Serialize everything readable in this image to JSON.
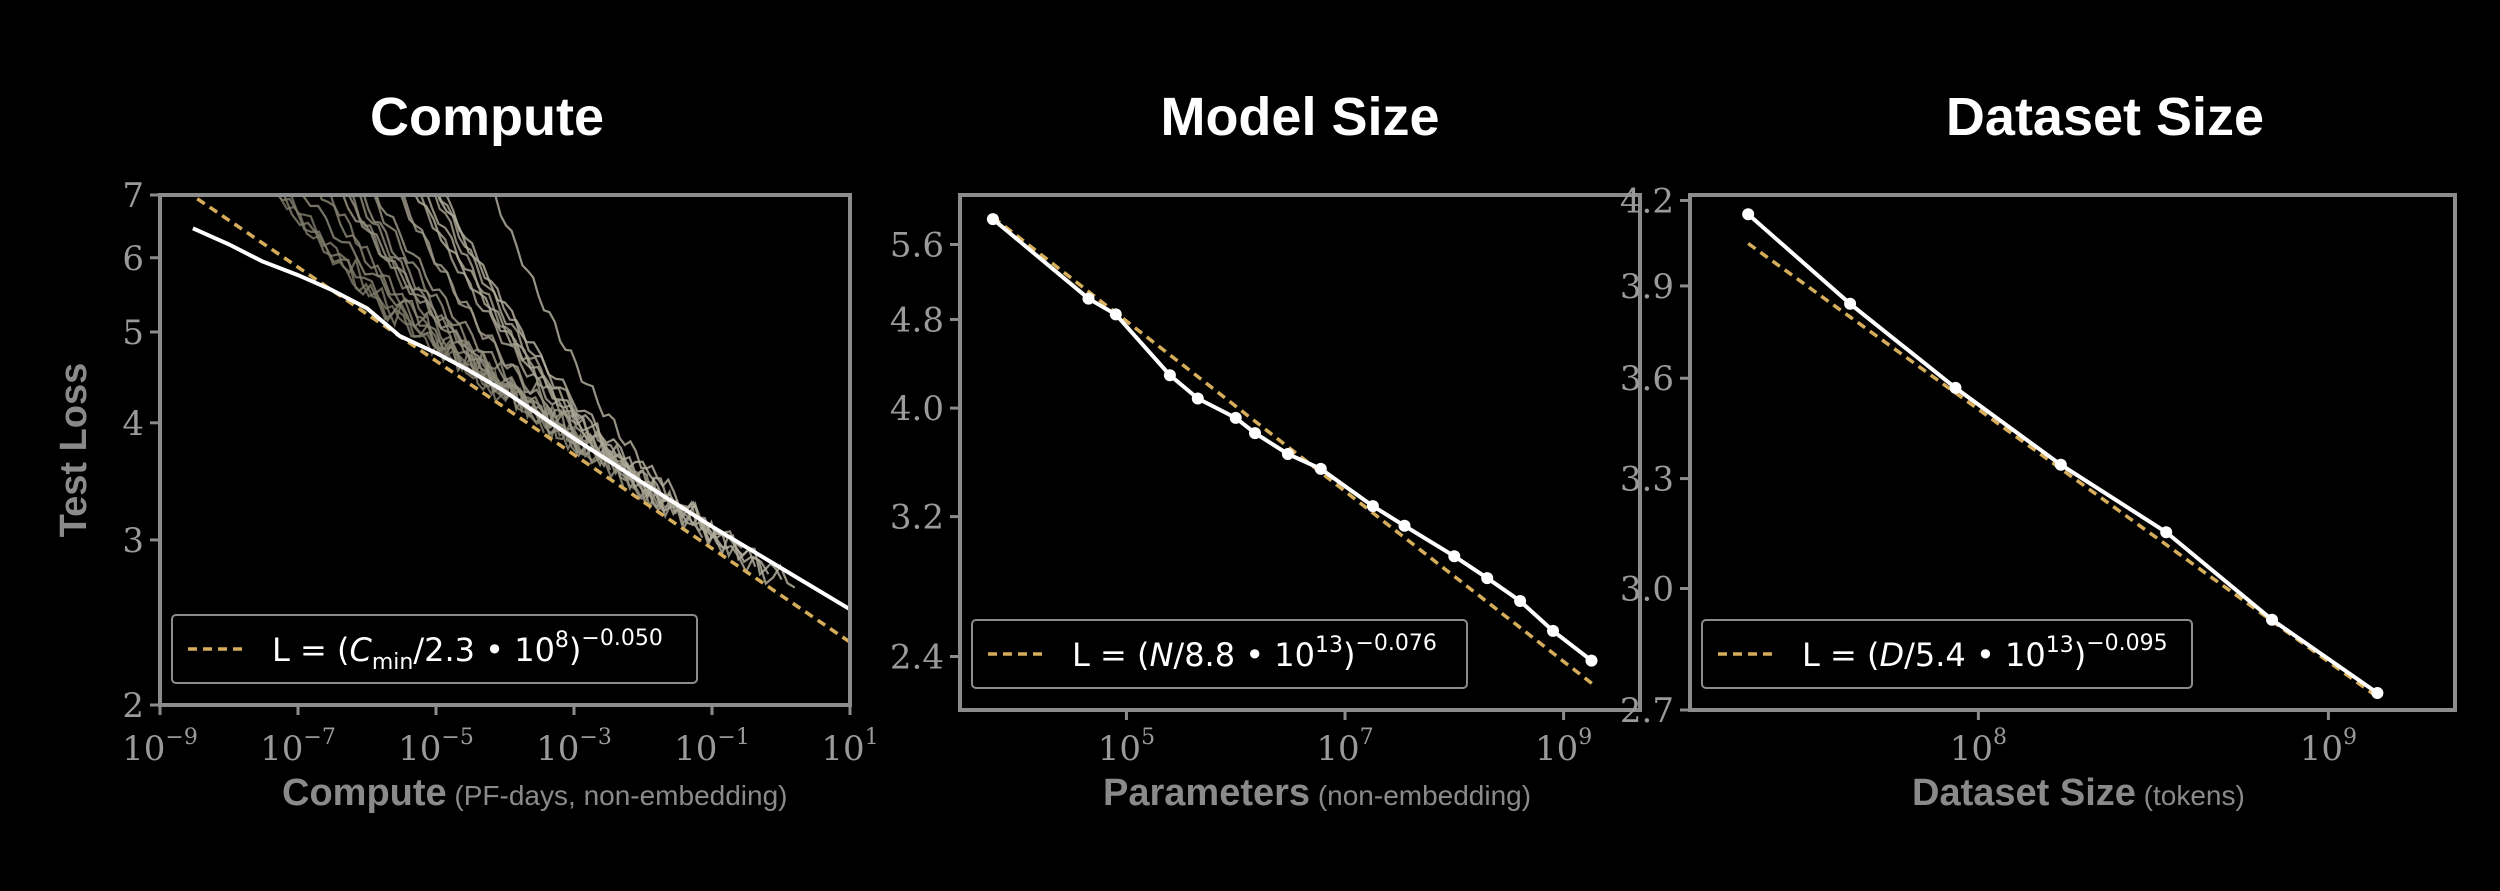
{
  "colors": {
    "background": "#000000",
    "frame": "#8c8c8c",
    "fit_line": "#d6ad5a",
    "empirical": "#ffffff",
    "learning_curves": "#a8a392",
    "text": "#ffffff",
    "axis_text": "#9a9a9a"
  },
  "chart_data": [
    {
      "type": "line",
      "title": "Compute",
      "xlabel": "Compute",
      "xlabel_sub": "(PF-days, non-embedding)",
      "ylabel": "Test Loss",
      "xscale": "log",
      "yscale": "log",
      "xlim": [
        1e-09,
        10
      ],
      "ylim": [
        2,
        7
      ],
      "xticks": [
        {
          "value": 1e-09,
          "base": "10",
          "exp": "−9"
        },
        {
          "value": 1e-07,
          "base": "10",
          "exp": "−7"
        },
        {
          "value": 1e-05,
          "base": "10",
          "exp": "−5"
        },
        {
          "value": 0.001,
          "base": "10",
          "exp": "−3"
        },
        {
          "value": 0.1,
          "base": "10",
          "exp": "−1"
        },
        {
          "value": 10,
          "base": "10",
          "exp": "1"
        }
      ],
      "yticks": [
        {
          "value": 2,
          "label": "2"
        },
        {
          "value": 3,
          "label": "3"
        },
        {
          "value": 4,
          "label": "4"
        },
        {
          "value": 5,
          "label": "5"
        },
        {
          "value": 6,
          "label": "6"
        },
        {
          "value": 7,
          "label": "7"
        }
      ],
      "legend": {
        "placement": "lower-left",
        "lhs": "L = (",
        "var": "C",
        "var_sub": "min",
        "mid": "/2.3 • 10",
        "base_exp": "8",
        "close": ")",
        "exp": "−0.050"
      },
      "fit": {
        "x_range": [
          1e-09,
          10
        ],
        "prefactor": 230000000.0,
        "exponent": -0.05
      },
      "series": [
        {
          "role": "empirical",
          "x": [
            3e-09,
            1e-08,
            3e-08,
            1e-07,
            3e-07,
            1e-06,
            3e-06,
            1e-05,
            3e-05,
            0.0001,
            0.001,
            0.01,
            0.1,
            1,
            10
          ],
          "y": [
            6.45,
            6.2,
            5.95,
            5.75,
            5.55,
            5.3,
            4.95,
            4.75,
            4.55,
            4.32,
            3.85,
            3.45,
            3.1,
            2.8,
            2.53
          ]
        },
        {
          "role": "learning-curves",
          "count": 24
        }
      ]
    },
    {
      "type": "line",
      "title": "Model Size",
      "xlabel": "Parameters",
      "xlabel_sub": "(non-embedding)",
      "ylabel": "",
      "xscale": "log",
      "yscale": "log",
      "xlim": [
        3000.0,
        5000000000.0
      ],
      "ylim": [
        2.15,
        6.2
      ],
      "xticks": [
        {
          "value": 100000.0,
          "base": "10",
          "exp": "5"
        },
        {
          "value": 10000000.0,
          "base": "10",
          "exp": "7"
        },
        {
          "value": 1000000000.0,
          "base": "10",
          "exp": "9"
        }
      ],
      "yticks": [
        {
          "value": 2.4,
          "label": "2.4"
        },
        {
          "value": 3.2,
          "label": "3.2"
        },
        {
          "value": 4.0,
          "label": "4.0"
        },
        {
          "value": 4.8,
          "label": "4.8"
        },
        {
          "value": 5.6,
          "label": "5.6"
        }
      ],
      "legend": {
        "placement": "lower-left",
        "lhs": "L = (",
        "var": "N",
        "var_sub": "",
        "mid": "/8.8 • 10",
        "base_exp": "13",
        "close": ")",
        "exp": "−0.076"
      },
      "fit": {
        "x_range": [
          6000,
          2000000000.0
        ],
        "prefactor": 88000000000000.0,
        "exponent": -0.076
      },
      "series": [
        {
          "role": "empirical",
          "x": [
            6000,
            45000,
            80000,
            250000,
            450000,
            1000000,
            1500000,
            3000000,
            6000000,
            18000000.0,
            35000000.0,
            100000000.0,
            200000000.0,
            400000000.0,
            800000000.0,
            1800000000.0
          ],
          "y": [
            5.9,
            5.01,
            4.85,
            4.28,
            4.08,
            3.92,
            3.8,
            3.64,
            3.53,
            3.27,
            3.14,
            2.95,
            2.82,
            2.69,
            2.53,
            2.38
          ]
        }
      ]
    },
    {
      "type": "line",
      "title": "Dataset Size",
      "xlabel": "Dataset Size",
      "xlabel_sub": "(tokens)",
      "ylabel": "",
      "xscale": "log",
      "yscale": "log",
      "xlim": [
        15000000.0,
        2300000000.0
      ],
      "ylim": [
        2.7,
        4.22
      ],
      "xticks": [
        {
          "value": 100000000.0,
          "base": "10",
          "exp": "8"
        },
        {
          "value": 1000000000.0,
          "base": "10",
          "exp": "9"
        }
      ],
      "yticks": [
        {
          "value": 2.7,
          "label": "2.7"
        },
        {
          "value": 3.0,
          "label": "3.0"
        },
        {
          "value": 3.3,
          "label": "3.3"
        },
        {
          "value": 3.6,
          "label": "3.6"
        },
        {
          "value": 3.9,
          "label": "3.9"
        },
        {
          "value": 4.2,
          "label": "4.2"
        }
      ],
      "legend": {
        "placement": "lower-left",
        "lhs": "L = (",
        "var": "D",
        "var_sub": "",
        "mid": "/5.4 • 10",
        "base_exp": "13",
        "close": ")",
        "exp": "−0.095"
      },
      "fit": {
        "x_range": [
          22000000.0,
          1400000000.0
        ],
        "prefactor": 54000000000000.0,
        "exponent": -0.095
      },
      "series": [
        {
          "role": "empirical",
          "x": [
            22000000.0,
            43000000.0,
            86000000.0,
            172000000.0,
            344000000.0,
            690000000.0,
            1380000000.0
          ],
          "y": [
            4.15,
            3.84,
            3.57,
            3.34,
            3.15,
            2.92,
            2.74
          ]
        }
      ]
    }
  ]
}
